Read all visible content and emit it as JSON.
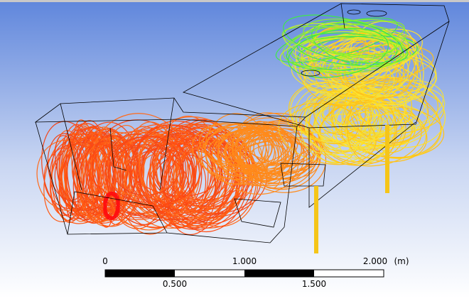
{
  "scale_bar": {
    "top_labels": [
      "0",
      "1.000",
      "2.000"
    ],
    "unit": "(m)",
    "bottom_labels": [
      "0.500",
      "1.500"
    ]
  }
}
